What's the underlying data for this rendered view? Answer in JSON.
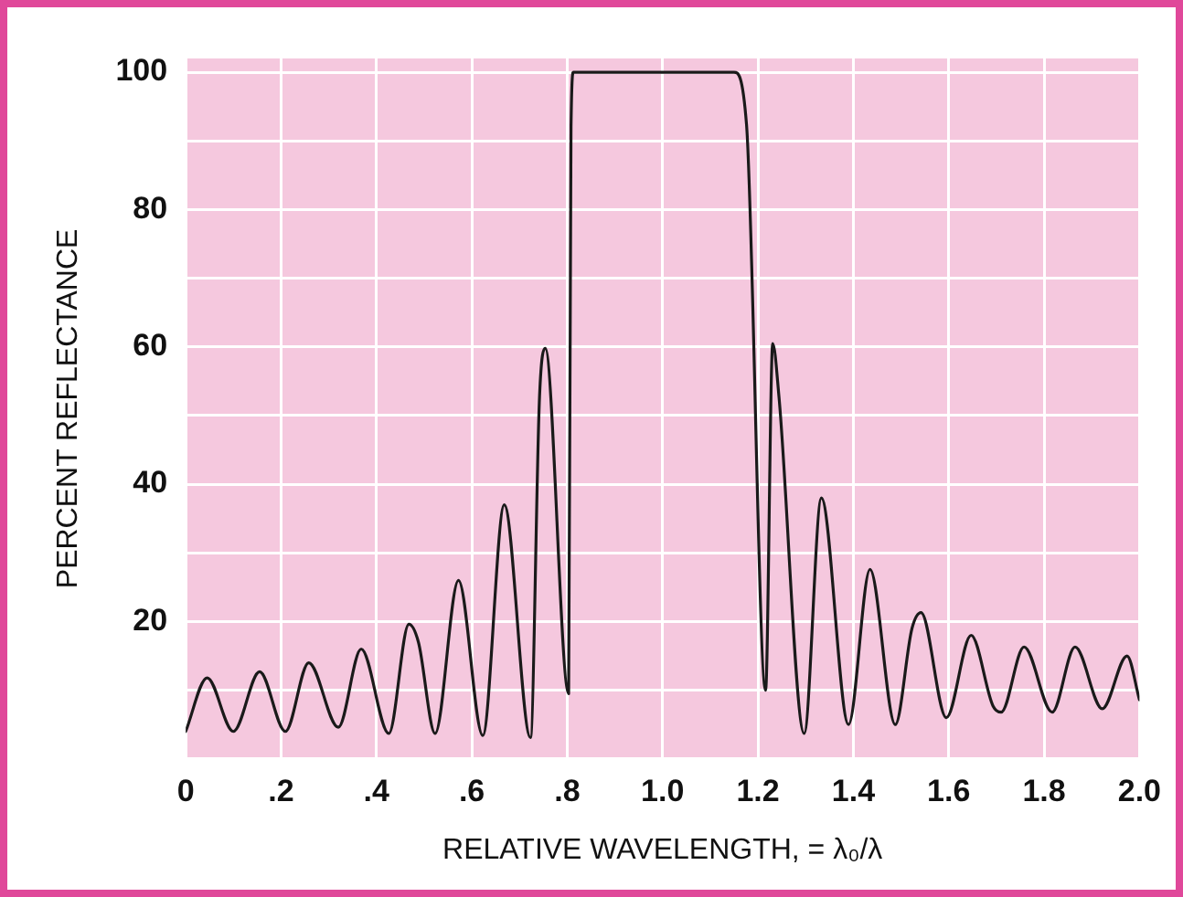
{
  "chart_data": {
    "type": "line",
    "xlabel": "RELATIVE WAVELENGTH, = λ₀/λ",
    "ylabel": "PERCENT REFLECTANCE",
    "xlim": [
      0,
      2
    ],
    "ylim": [
      0,
      102
    ],
    "xticks": [
      0,
      {
        "value": 0.2,
        "label": ".2"
      },
      {
        "value": 0.4,
        "label": ".4"
      },
      {
        "value": 0.6,
        "label": ".6"
      },
      {
        "value": 0.8,
        "label": ".8"
      },
      {
        "value": 1,
        "label": "1.0"
      },
      1.2,
      1.4,
      1.6,
      1.8,
      {
        "value": 2,
        "label": "2.0"
      }
    ],
    "yticks": [
      {
        "value": 0,
        "label": null
      },
      {
        "value": 10,
        "label": null
      },
      20,
      {
        "value": 30,
        "label": null
      },
      40,
      {
        "value": 50,
        "label": null
      },
      60,
      {
        "value": 70,
        "label": null
      },
      80,
      {
        "value": 90,
        "label": null
      },
      100
    ],
    "grid": true,
    "marker": "none",
    "line_style": "solid",
    "series": [
      {
        "color": "#1a1a1a",
        "x": [
          0,
          0.045,
          0.1,
          0.155,
          0.209,
          0.258,
          0.32,
          0.368,
          0.426,
          0.468,
          0.488,
          0.523,
          0.572,
          0.623,
          0.668,
          0.723,
          0.742,
          0.754,
          0.803,
          0.808,
          0.813,
          1.15,
          1.176,
          1.216,
          1.231,
          1.244,
          1.297,
          1.333,
          1.39,
          1.435,
          1.488,
          1.523,
          1.542,
          1.595,
          1.647,
          1.693,
          1.71,
          1.758,
          1.817,
          1.865,
          1.922,
          1.974,
          2.0
        ],
        "values": [
          4,
          11.8,
          4,
          12.7,
          4,
          14,
          4.6,
          16,
          3.7,
          19.6,
          17,
          3.7,
          26,
          3.4,
          37,
          3.1,
          52.8,
          59.8,
          9.5,
          92,
          100,
          100,
          92.4,
          10,
          60.5,
          52.8,
          3.7,
          38,
          5,
          27.6,
          5,
          19,
          21.3,
          6,
          18,
          7.7,
          6.8,
          16.3,
          6.8,
          16.3,
          7.3,
          15,
          8.6
        ]
      }
    ]
  }
}
